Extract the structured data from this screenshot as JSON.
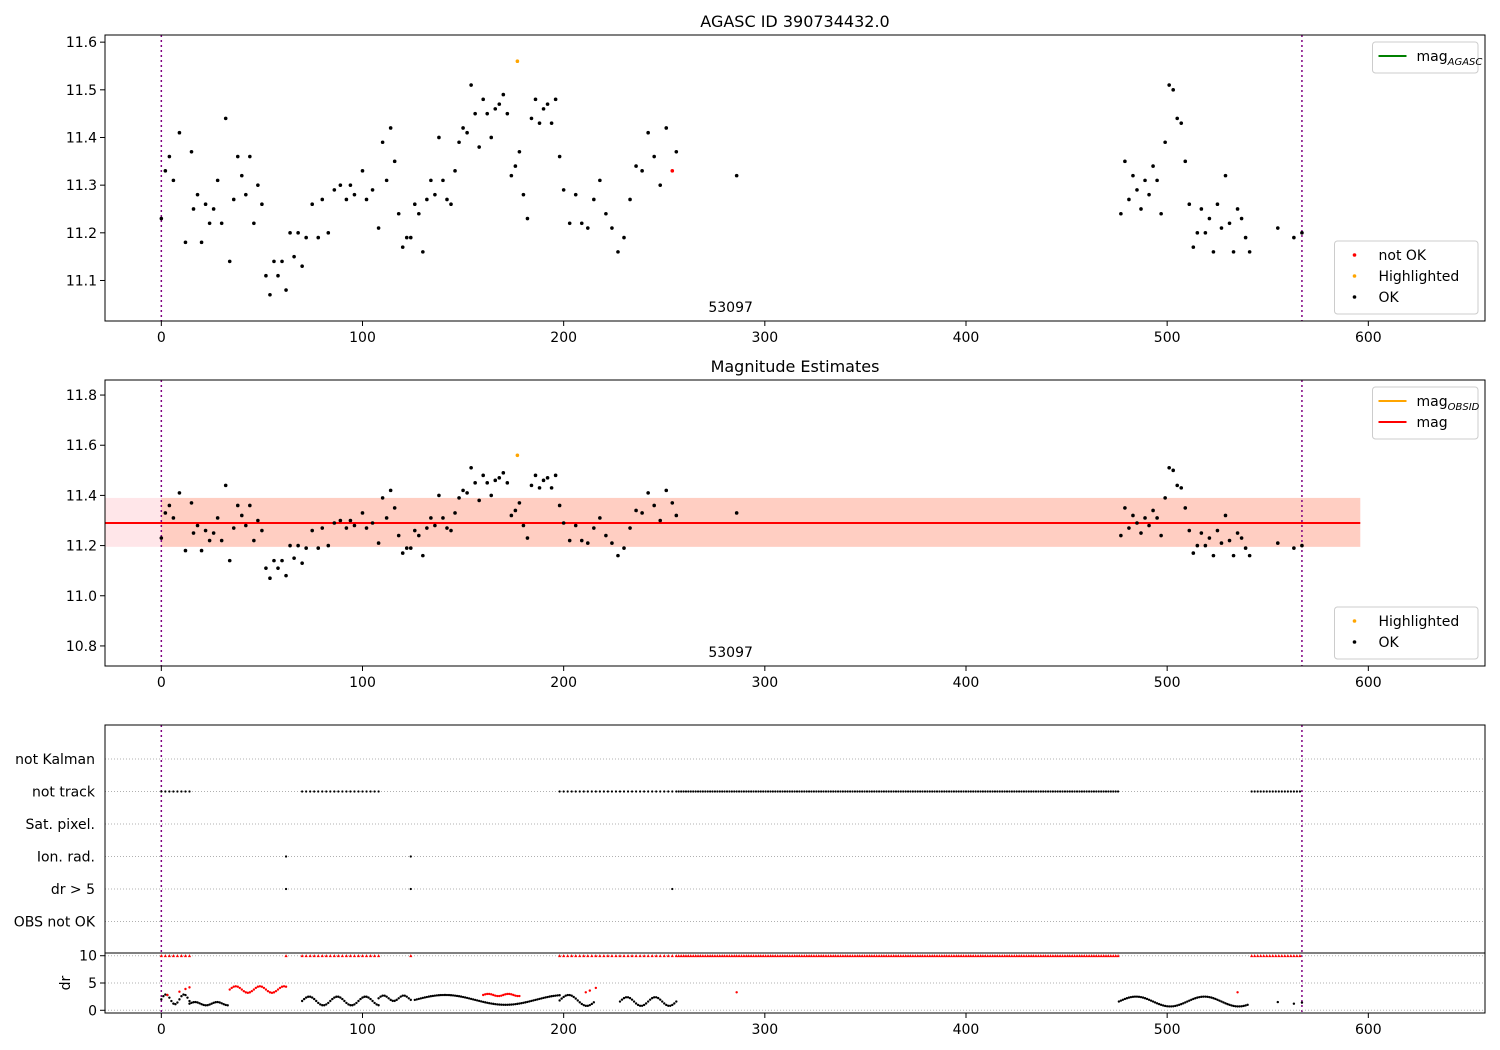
{
  "chart_data": [
    {
      "type": "scatter",
      "title": "AGASC ID 390734432.0",
      "xlabel": "",
      "ylabel": "",
      "xlim": [
        -28,
        658
      ],
      "ylim": [
        11.015,
        11.615
      ],
      "xticks": [
        0,
        100,
        200,
        300,
        400,
        500,
        600
      ],
      "yticks": [
        11.1,
        11.2,
        11.3,
        11.4,
        11.5,
        11.6
      ],
      "ytick_format": 1,
      "vlines": [
        0,
        567
      ],
      "annotation": "53097",
      "legends": [
        {
          "position": "top-right",
          "entries": [
            {
              "kind": "line",
              "color": "#008000",
              "label": "mag",
              "sub": "AGASC"
            }
          ]
        },
        {
          "position": "bottom-right",
          "entries": [
            {
              "kind": "dot",
              "color": "#ff0000",
              "label": "not OK"
            },
            {
              "kind": "dot",
              "color": "#ffa500",
              "label": "Highlighted"
            },
            {
              "kind": "dot",
              "color": "#000000",
              "label": "OK"
            }
          ]
        }
      ],
      "series": [
        {
          "name": "OK",
          "color": "#000000",
          "x": [
            0,
            2,
            4,
            6,
            9,
            12,
            15,
            16,
            18,
            20,
            22,
            24,
            26,
            28,
            30,
            32,
            34,
            36,
            38,
            40,
            42,
            44,
            46,
            48,
            50,
            52,
            54,
            56,
            58,
            60,
            62,
            64,
            66,
            68,
            70,
            72,
            75,
            78,
            80,
            83,
            86,
            89,
            92,
            94,
            96,
            100,
            102,
            105,
            108,
            110,
            112,
            114,
            116,
            118,
            120,
            122,
            124,
            126,
            128,
            130,
            132,
            134,
            136,
            138,
            140,
            142,
            144,
            146,
            148,
            150,
            152,
            154,
            156,
            158,
            160,
            162,
            164,
            166,
            168,
            170,
            172,
            174,
            176,
            178,
            180,
            182,
            184,
            186,
            188,
            190,
            192,
            194,
            196,
            198,
            200,
            203,
            206,
            209,
            212,
            215,
            218,
            221,
            224,
            227,
            230,
            233,
            236,
            239,
            242,
            245,
            248,
            251,
            256,
            286,
            477,
            479,
            481,
            483,
            485,
            487,
            489,
            491,
            493,
            495,
            497,
            499,
            501,
            503,
            505,
            507,
            509,
            511,
            513,
            515,
            517,
            519,
            521,
            523,
            525,
            527,
            529,
            531,
            533,
            535,
            537,
            539,
            541,
            555,
            563,
            567
          ],
          "y": [
            11.23,
            11.33,
            11.36,
            11.31,
            11.41,
            11.18,
            11.37,
            11.25,
            11.28,
            11.18,
            11.26,
            11.22,
            11.25,
            11.31,
            11.22,
            11.44,
            11.14,
            11.27,
            11.36,
            11.32,
            11.28,
            11.36,
            11.22,
            11.3,
            11.26,
            11.11,
            11.07,
            11.14,
            11.11,
            11.14,
            11.08,
            11.2,
            11.15,
            11.2,
            11.13,
            11.19,
            11.26,
            11.19,
            11.27,
            11.2,
            11.29,
            11.3,
            11.27,
            11.3,
            11.28,
            11.33,
            11.27,
            11.29,
            11.21,
            11.39,
            11.31,
            11.42,
            11.35,
            11.24,
            11.17,
            11.19,
            11.19,
            11.26,
            11.24,
            11.16,
            11.27,
            11.31,
            11.28,
            11.4,
            11.31,
            11.27,
            11.26,
            11.33,
            11.39,
            11.42,
            11.41,
            11.51,
            11.45,
            11.38,
            11.48,
            11.45,
            11.4,
            11.46,
            11.47,
            11.49,
            11.45,
            11.32,
            11.34,
            11.37,
            11.28,
            11.23,
            11.44,
            11.48,
            11.43,
            11.46,
            11.47,
            11.43,
            11.48,
            11.36,
            11.29,
            11.22,
            11.28,
            11.22,
            11.21,
            11.27,
            11.31,
            11.24,
            11.21,
            11.16,
            11.19,
            11.27,
            11.34,
            11.33,
            11.41,
            11.36,
            11.3,
            11.42,
            11.37,
            11.32,
            11.24,
            11.35,
            11.27,
            11.32,
            11.29,
            11.25,
            11.31,
            11.28,
            11.34,
            11.31,
            11.24,
            11.39,
            11.51,
            11.5,
            11.44,
            11.43,
            11.35,
            11.26,
            11.17,
            11.2,
            11.25,
            11.2,
            11.23,
            11.16,
            11.26,
            11.21,
            11.32,
            11.22,
            11.16,
            11.25,
            11.23,
            11.19,
            11.16,
            11.21,
            11.19,
            11.2
          ]
        },
        {
          "name": "not OK",
          "color": "#ff0000",
          "x": [
            254
          ],
          "y": [
            11.33
          ]
        },
        {
          "name": "Highlighted",
          "color": "#ffa500",
          "x": [
            177
          ],
          "y": [
            11.56
          ]
        }
      ]
    },
    {
      "type": "scatter",
      "title": "Magnitude Estimates",
      "xlabel": "",
      "ylabel": "",
      "xlim": [
        -28,
        658
      ],
      "ylim": [
        10.72,
        11.86
      ],
      "xticks": [
        0,
        100,
        200,
        300,
        400,
        500,
        600
      ],
      "yticks": [
        10.8,
        11.0,
        11.2,
        11.4,
        11.6,
        11.8
      ],
      "ytick_format": 1,
      "vlines": [
        0,
        567
      ],
      "annotation": "53097",
      "bands": [
        {
          "x0": -28,
          "x1": 596,
          "y0": 11.195,
          "y1": 11.39,
          "color": "#ffb6c1",
          "opacity": 0.35
        },
        {
          "x0": 0,
          "x1": 596,
          "y0": 11.195,
          "y1": 11.39,
          "color": "#ffa07a",
          "opacity": 0.35
        }
      ],
      "hlines": [
        {
          "y": 11.29,
          "x0": -28,
          "x1": 596,
          "color": "#ff0000"
        }
      ],
      "legends": [
        {
          "position": "top-right",
          "entries": [
            {
              "kind": "line",
              "color": "#ffa500",
              "label": "mag",
              "sub": "OBSID"
            },
            {
              "kind": "line",
              "color": "#ff0000",
              "label": "mag"
            }
          ]
        },
        {
          "position": "bottom-right",
          "entries": [
            {
              "kind": "dot",
              "color": "#ffa500",
              "label": "Highlighted"
            },
            {
              "kind": "dot",
              "color": "#000000",
              "label": "OK"
            }
          ]
        }
      ],
      "series": [
        {
          "name": "OK",
          "color": "#000000",
          "x": [
            0,
            2,
            4,
            6,
            9,
            12,
            15,
            16,
            18,
            20,
            22,
            24,
            26,
            28,
            30,
            32,
            34,
            36,
            38,
            40,
            42,
            44,
            46,
            48,
            50,
            52,
            54,
            56,
            58,
            60,
            62,
            64,
            66,
            68,
            70,
            72,
            75,
            78,
            80,
            83,
            86,
            89,
            92,
            94,
            96,
            100,
            102,
            105,
            108,
            110,
            112,
            114,
            116,
            118,
            120,
            122,
            124,
            126,
            128,
            130,
            132,
            134,
            136,
            138,
            140,
            142,
            144,
            146,
            148,
            150,
            152,
            154,
            156,
            158,
            160,
            162,
            164,
            166,
            168,
            170,
            172,
            174,
            176,
            178,
            180,
            182,
            184,
            186,
            188,
            190,
            192,
            194,
            196,
            198,
            200,
            203,
            206,
            209,
            212,
            215,
            218,
            221,
            224,
            227,
            230,
            233,
            236,
            239,
            242,
            245,
            248,
            251,
            254,
            256,
            286,
            477,
            479,
            481,
            483,
            485,
            487,
            489,
            491,
            493,
            495,
            497,
            499,
            501,
            503,
            505,
            507,
            509,
            511,
            513,
            515,
            517,
            519,
            521,
            523,
            525,
            527,
            529,
            531,
            533,
            535,
            537,
            539,
            541,
            555,
            563,
            567
          ],
          "y": [
            11.23,
            11.33,
            11.36,
            11.31,
            11.41,
            11.18,
            11.37,
            11.25,
            11.28,
            11.18,
            11.26,
            11.22,
            11.25,
            11.31,
            11.22,
            11.44,
            11.14,
            11.27,
            11.36,
            11.32,
            11.28,
            11.36,
            11.22,
            11.3,
            11.26,
            11.11,
            11.07,
            11.14,
            11.11,
            11.14,
            11.08,
            11.2,
            11.15,
            11.2,
            11.13,
            11.19,
            11.26,
            11.19,
            11.27,
            11.2,
            11.29,
            11.3,
            11.27,
            11.3,
            11.28,
            11.33,
            11.27,
            11.29,
            11.21,
            11.39,
            11.31,
            11.42,
            11.35,
            11.24,
            11.17,
            11.19,
            11.19,
            11.26,
            11.24,
            11.16,
            11.27,
            11.31,
            11.28,
            11.4,
            11.31,
            11.27,
            11.26,
            11.33,
            11.39,
            11.42,
            11.41,
            11.51,
            11.45,
            11.38,
            11.48,
            11.45,
            11.4,
            11.46,
            11.47,
            11.49,
            11.45,
            11.32,
            11.34,
            11.37,
            11.28,
            11.23,
            11.44,
            11.48,
            11.43,
            11.46,
            11.47,
            11.43,
            11.48,
            11.36,
            11.29,
            11.22,
            11.28,
            11.22,
            11.21,
            11.27,
            11.31,
            11.24,
            11.21,
            11.16,
            11.19,
            11.27,
            11.34,
            11.33,
            11.41,
            11.36,
            11.3,
            11.42,
            11.37,
            11.32,
            11.33,
            11.24,
            11.35,
            11.27,
            11.32,
            11.29,
            11.25,
            11.31,
            11.28,
            11.34,
            11.31,
            11.24,
            11.39,
            11.51,
            11.5,
            11.44,
            11.43,
            11.35,
            11.26,
            11.17,
            11.2,
            11.25,
            11.2,
            11.23,
            11.16,
            11.26,
            11.21,
            11.32,
            11.22,
            11.16,
            11.25,
            11.23,
            11.19,
            11.16,
            11.21,
            11.19,
            11.2
          ]
        },
        {
          "name": "Highlighted",
          "color": "#ffa500",
          "x": [
            177
          ],
          "y": [
            11.56
          ]
        }
      ]
    },
    {
      "type": "scatter",
      "title": "",
      "xlim": [
        -28,
        658
      ],
      "xticks": [
        0,
        100,
        200,
        300,
        400,
        500,
        600
      ],
      "vlines": [
        0,
        567
      ],
      "flag_rows": [
        "not Kalman",
        "not track",
        "Sat. pixel.",
        "Ion. rad.",
        "dr > 5",
        "OBS not OK"
      ],
      "flags": {
        "not track": [
          [
            0,
            14,
            2
          ],
          [
            70,
            108,
            2
          ],
          [
            198,
            255,
            2
          ],
          [
            256,
            476,
            1.2
          ],
          [
            542,
            567,
            1.5
          ]
        ],
        "Ion. rad.": [
          [
            62,
            62,
            1
          ],
          [
            124,
            124,
            1
          ]
        ],
        "dr > 5": [
          [
            62,
            62,
            1
          ],
          [
            124,
            124,
            1
          ],
          [
            254,
            254,
            1
          ]
        ]
      },
      "dr_panel": {
        "ylabel": "dr",
        "ylim": [
          -0.5,
          10.5
        ],
        "yticks": [
          0,
          5,
          10
        ],
        "ten_ranges": [
          [
            0,
            14,
            2
          ],
          [
            62,
            62,
            1
          ],
          [
            70,
            108,
            2
          ],
          [
            124,
            124,
            1
          ],
          [
            198,
            255,
            2
          ],
          [
            256,
            476,
            1.2
          ],
          [
            542,
            567,
            1.5
          ]
        ],
        "curve_segments": [
          {
            "x0": 0,
            "x1": 14,
            "base": 2.0,
            "amp": 0.9,
            "period": 9
          },
          {
            "x0": 14,
            "x1": 33,
            "base": 1.2,
            "amp": 0.3,
            "period": 11
          },
          {
            "x0": 70,
            "x1": 108,
            "base": 1.7,
            "amp": 0.8,
            "period": 14
          },
          {
            "x0": 108,
            "x1": 124,
            "base": 2.2,
            "amp": 0.5,
            "period": 10
          },
          {
            "x0": 126,
            "x1": 198,
            "base": 1.9,
            "amp": 0.9,
            "period": 60
          },
          {
            "x0": 198,
            "x1": 215,
            "base": 1.8,
            "amp": 1.0,
            "period": 18
          },
          {
            "x0": 228,
            "x1": 256,
            "base": 1.6,
            "amp": 0.8,
            "period": 14
          },
          {
            "x0": 476,
            "x1": 540,
            "base": 1.6,
            "amp": 0.9,
            "period": 34
          }
        ],
        "red_segments": [
          {
            "x0": 34,
            "x1": 62,
            "base": 3.8,
            "amp": 0.6,
            "period": 12
          },
          {
            "x0": 160,
            "x1": 178,
            "base": 2.8,
            "amp": 0.2,
            "period": 10
          }
        ],
        "red_points": [
          [
            3,
            2.8
          ],
          [
            9,
            3.4
          ],
          [
            12,
            3.9
          ],
          [
            14,
            4.2
          ],
          [
            211,
            3.3
          ],
          [
            213,
            3.6
          ],
          [
            216,
            4.1
          ],
          [
            286,
            3.3
          ],
          [
            535,
            3.3
          ]
        ],
        "black_points": [
          [
            555,
            1.5
          ],
          [
            563,
            1.2
          ],
          [
            567,
            1.4
          ]
        ]
      }
    }
  ]
}
